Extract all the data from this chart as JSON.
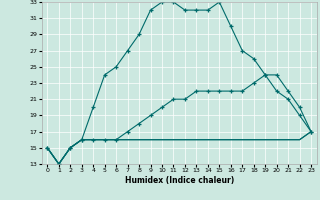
{
  "xlabel": "Humidex (Indice chaleur)",
  "ylabel": "",
  "xlim": [
    -0.5,
    23.5
  ],
  "ylim": [
    13,
    33
  ],
  "xticks": [
    0,
    1,
    2,
    3,
    4,
    5,
    6,
    7,
    8,
    9,
    10,
    11,
    12,
    13,
    14,
    15,
    16,
    17,
    18,
    19,
    20,
    21,
    22,
    23
  ],
  "yticks": [
    13,
    15,
    17,
    19,
    21,
    23,
    25,
    27,
    29,
    31,
    33
  ],
  "bg_color": "#cce8e0",
  "line_color": "#006b6b",
  "line1_x": [
    0,
    1,
    2,
    3,
    4,
    5,
    6,
    7,
    8,
    9,
    10,
    11,
    12,
    13,
    14,
    15,
    16,
    17,
    18,
    19,
    20,
    21,
    22,
    23
  ],
  "line1_y": [
    15,
    13,
    15,
    16,
    20,
    24,
    25,
    27,
    29,
    32,
    33,
    33,
    32,
    32,
    32,
    33,
    30,
    27,
    26,
    24,
    24,
    22,
    20,
    17
  ],
  "line2_x": [
    0,
    1,
    2,
    3,
    4,
    5,
    6,
    7,
    8,
    9,
    10,
    11,
    12,
    13,
    14,
    15,
    16,
    17,
    18,
    19,
    20,
    21,
    22,
    23
  ],
  "line2_y": [
    15,
    13,
    15,
    16,
    16,
    16,
    16,
    17,
    18,
    19,
    20,
    21,
    21,
    22,
    22,
    22,
    22,
    22,
    23,
    24,
    22,
    21,
    19,
    17
  ],
  "line3_x": [
    0,
    1,
    2,
    3,
    4,
    5,
    6,
    7,
    8,
    9,
    10,
    11,
    12,
    13,
    14,
    15,
    16,
    17,
    18,
    19,
    20,
    21,
    22,
    23
  ],
  "line3_y": [
    15,
    13,
    15,
    16,
    16,
    16,
    16,
    16,
    16,
    16,
    16,
    16,
    16,
    16,
    16,
    16,
    16,
    16,
    16,
    16,
    16,
    16,
    16,
    17
  ],
  "line4_x": [
    0,
    1,
    2,
    3,
    4,
    5,
    6,
    7,
    8,
    9,
    10,
    11,
    12,
    13,
    14,
    15,
    16,
    17,
    18,
    19,
    20,
    21,
    22,
    23
  ],
  "line4_y": [
    15,
    13,
    15,
    16,
    16,
    16,
    16,
    16,
    16,
    16,
    16,
    16,
    16,
    16,
    16,
    16,
    16,
    16,
    16,
    16,
    16,
    16,
    16,
    17
  ]
}
